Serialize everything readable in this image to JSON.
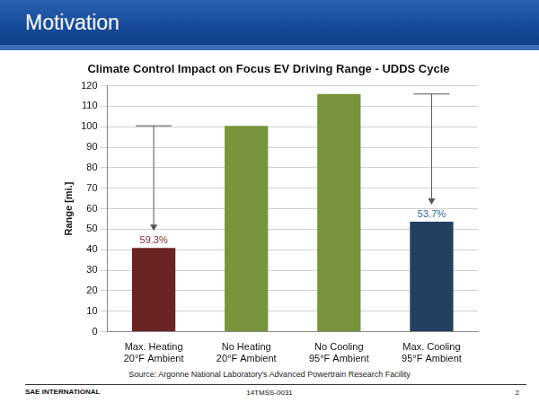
{
  "slide": {
    "heading": "Motivation",
    "source": "Source: Argonne National Laboratory's Advanced Powertrain Research Facility",
    "footer": {
      "left": "SAE INTERNATIONAL",
      "center": "14TMSS-0031",
      "right": "2"
    }
  },
  "chart_data": {
    "type": "bar",
    "title": "Climate Control Impact on Focus EV Driving Range - UDDS Cycle",
    "y_label": "Range [mi.]",
    "categories": [
      [
        "Max. Heating",
        "20°F Ambient"
      ],
      [
        "No Heating",
        "20°F Ambient"
      ],
      [
        "No Cooling",
        "95°F Ambient"
      ],
      [
        "Max. Cooling",
        "95°F Ambient"
      ]
    ],
    "values": [
      40.9,
      100.5,
      116,
      53.7
    ],
    "colors": [
      "#6b2323",
      "#77933c",
      "#77933c",
      "#243f60"
    ],
    "ylim": [
      0,
      120
    ],
    "yticks": [
      0,
      10,
      20,
      30,
      40,
      50,
      60,
      70,
      80,
      90,
      100,
      110,
      120
    ],
    "grid": true,
    "annotations": [
      {
        "text": "59.3%",
        "category": [
          "Max. Heating",
          "20°F Ambient"
        ],
        "from": 100.5,
        "to": 40.9,
        "color": "#7b2c2c"
      },
      {
        "text": "53.7%",
        "category": [
          "Max. Cooling",
          "95°F Ambient"
        ],
        "from": 116,
        "to": 53.7,
        "color": "#2e5f9c"
      }
    ]
  }
}
